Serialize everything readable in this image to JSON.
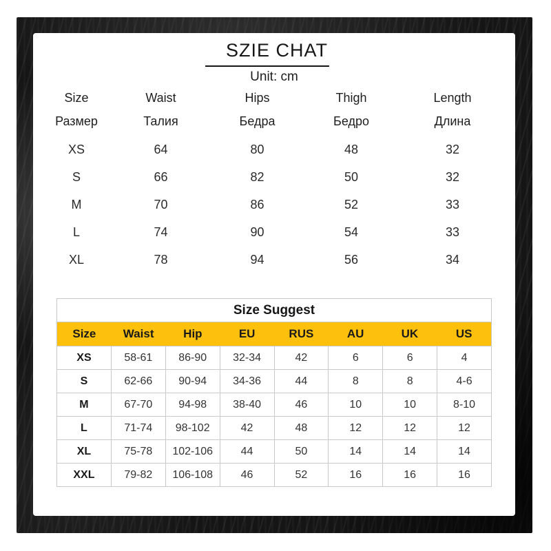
{
  "title": "SZIE CHAT",
  "unit_label": "Unit: cm",
  "measurement_table": {
    "columns": [
      {
        "en": "Size",
        "ru": "Размер"
      },
      {
        "en": "Waist",
        "ru": "Талия"
      },
      {
        "en": "Hips",
        "ru": "Бедра"
      },
      {
        "en": "Thigh",
        "ru": "Бедро"
      },
      {
        "en": "Length",
        "ru": "Длина"
      }
    ],
    "rows": [
      [
        "XS",
        "64",
        "80",
        "48",
        "32"
      ],
      [
        "S",
        "66",
        "82",
        "50",
        "32"
      ],
      [
        "M",
        "70",
        "86",
        "52",
        "33"
      ],
      [
        "L",
        "74",
        "90",
        "54",
        "33"
      ],
      [
        "XL",
        "78",
        "94",
        "56",
        "34"
      ]
    ]
  },
  "size_suggest_table": {
    "title": "Size Suggest",
    "headers": [
      "Size",
      "Waist",
      "Hip",
      "EU",
      "RUS",
      "AU",
      "UK",
      "US"
    ],
    "rows": [
      [
        "XS",
        "58-61",
        "86-90",
        "32-34",
        "42",
        "6",
        "6",
        "4"
      ],
      [
        "S",
        "62-66",
        "90-94",
        "34-36",
        "44",
        "8",
        "8",
        "4-6"
      ],
      [
        "M",
        "67-70",
        "94-98",
        "38-40",
        "46",
        "10",
        "10",
        "8-10"
      ],
      [
        "L",
        "71-74",
        "98-102",
        "42",
        "48",
        "12",
        "12",
        "12"
      ],
      [
        "XL",
        "75-78",
        "102-106",
        "44",
        "50",
        "14",
        "14",
        "14"
      ],
      [
        "XXL",
        "79-82",
        "106-108",
        "46",
        "52",
        "16",
        "16",
        "16"
      ]
    ]
  },
  "colors": {
    "accent_yellow": "#fdc00d",
    "table_border": "#c9c9c9",
    "text_dark": "#161616",
    "text_table": "#333333",
    "photo_background": "#151515"
  }
}
